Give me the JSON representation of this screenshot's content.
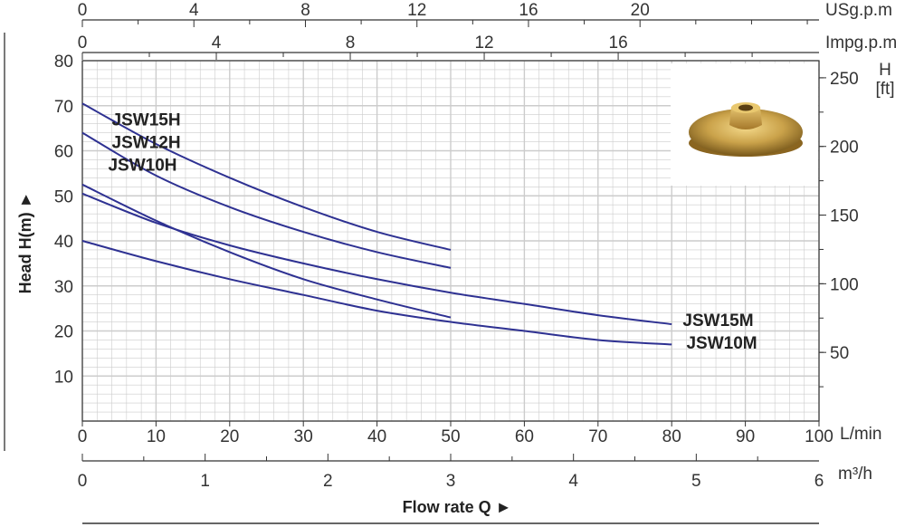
{
  "chart_data": {
    "type": "line",
    "xlabel": "Flow rate Q ►",
    "ylabel": "Head H(m) ►",
    "x_unit": "L/min",
    "xlim": [
      0,
      100
    ],
    "ylim": [
      0,
      80
    ],
    "grid": true,
    "x_ticks": [
      0,
      10,
      20,
      30,
      40,
      50,
      60,
      70,
      80,
      90,
      100
    ],
    "y_ticks": [
      10,
      20,
      30,
      40,
      50,
      60,
      70,
      80
    ],
    "secondary_axes": {
      "usgpm": {
        "label": "USg.p.m",
        "ticks": [
          0,
          4,
          8,
          12,
          16,
          20
        ],
        "per_unit_lmin": 3.785
      },
      "impgpm": {
        "label": "Impg.p.m",
        "ticks": [
          0,
          4,
          8,
          12,
          16
        ],
        "per_unit_lmin": 4.546
      },
      "m3h": {
        "label": "m³/h",
        "ticks": [
          0,
          1,
          2,
          3,
          4,
          5,
          6
        ],
        "per_unit_lmin": 16.667
      },
      "ft": {
        "label_line1": "H",
        "label_line2": "[ft]",
        "ticks": [
          50,
          100,
          150,
          200,
          250
        ],
        "per_unit_m": 0.3048
      }
    },
    "series": [
      {
        "name": "JSW15H",
        "x": [
          0,
          10,
          20,
          30,
          40,
          50
        ],
        "y": [
          70.5,
          61.5,
          54,
          47.5,
          42,
          38
        ]
      },
      {
        "name": "JSW12H",
        "x": [
          0,
          10,
          20,
          30,
          40,
          50
        ],
        "y": [
          64,
          54.5,
          47.5,
          42,
          37.5,
          34
        ]
      },
      {
        "name": "JSW10H",
        "x": [
          0,
          10,
          20,
          30,
          40,
          50
        ],
        "y": [
          52.5,
          44.5,
          37.5,
          31.5,
          27,
          23
        ]
      },
      {
        "name": "JSW15M",
        "x": [
          0,
          10,
          20,
          30,
          40,
          50,
          60,
          70,
          80
        ],
        "y": [
          50.5,
          44,
          39,
          35,
          31.5,
          28.5,
          26,
          23.5,
          21.5
        ]
      },
      {
        "name": "JSW10M",
        "x": [
          0,
          10,
          20,
          30,
          40,
          50,
          60,
          70,
          80
        ],
        "y": [
          40,
          35.5,
          31.5,
          28,
          24.5,
          22,
          20,
          18,
          17
        ]
      }
    ],
    "label_anchor": [
      {
        "name": "JSW15H",
        "x": 4,
        "y": 67
      },
      {
        "name": "JSW12H",
        "x": 4,
        "y": 62
      },
      {
        "name": "JSW10H",
        "x": 3.5,
        "y": 57
      },
      {
        "name": "JSW15M",
        "x": 81.5,
        "y": 22.5
      },
      {
        "name": "JSW10M",
        "x": 82,
        "y": 17.5
      }
    ]
  },
  "colors": {
    "curve": "#2e3192",
    "grid": "#cccccc",
    "axis": "#333333"
  },
  "impeller_image": {
    "icon": "brass-impeller"
  }
}
